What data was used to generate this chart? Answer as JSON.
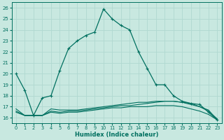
{
  "xlabel": "Humidex (Indice chaleur)",
  "ylabel": "",
  "xlim": [
    -0.5,
    23.5
  ],
  "ylim": [
    15.5,
    26.5
  ],
  "xticks": [
    0,
    1,
    2,
    3,
    4,
    5,
    6,
    7,
    8,
    9,
    10,
    11,
    12,
    13,
    14,
    15,
    16,
    17,
    18,
    19,
    20,
    21,
    22,
    23
  ],
  "yticks": [
    16,
    17,
    18,
    19,
    20,
    21,
    22,
    23,
    24,
    25,
    26
  ],
  "background_color": "#c8e8e0",
  "grid_color": "#b0d8d0",
  "line_color": "#007060",
  "line1_x": [
    0,
    1,
    2,
    3,
    4,
    5,
    6,
    7,
    8,
    9,
    10,
    11,
    12,
    13,
    14,
    15,
    16,
    17,
    18,
    19,
    20,
    21,
    22,
    23
  ],
  "line1_y": [
    20.0,
    18.5,
    16.2,
    17.8,
    18.0,
    20.3,
    22.3,
    23.0,
    23.5,
    23.8,
    25.9,
    25.0,
    24.4,
    24.0,
    22.0,
    20.5,
    19.0,
    19.0,
    18.0,
    17.5,
    17.3,
    17.2,
    16.5,
    15.8
  ],
  "line2_x": [
    0,
    1,
    2,
    3,
    4,
    5,
    6,
    7,
    8,
    9,
    10,
    11,
    12,
    13,
    14,
    15,
    16,
    17,
    18,
    19,
    20,
    21,
    22,
    23
  ],
  "line2_y": [
    16.8,
    16.2,
    16.2,
    16.2,
    16.8,
    16.7,
    16.7,
    16.7,
    16.8,
    16.9,
    17.0,
    17.1,
    17.2,
    17.3,
    17.4,
    17.4,
    17.5,
    17.5,
    17.5,
    17.4,
    17.3,
    17.0,
    16.7,
    15.8
  ],
  "line3_x": [
    0,
    1,
    2,
    3,
    4,
    5,
    6,
    7,
    8,
    9,
    10,
    11,
    12,
    13,
    14,
    15,
    16,
    17,
    18,
    19,
    20,
    21,
    22,
    23
  ],
  "line3_y": [
    16.6,
    16.2,
    16.2,
    16.2,
    16.6,
    16.5,
    16.6,
    16.6,
    16.7,
    16.8,
    16.9,
    17.0,
    17.1,
    17.1,
    17.2,
    17.3,
    17.4,
    17.5,
    17.5,
    17.4,
    17.2,
    17.0,
    16.6,
    15.9
  ],
  "line4_x": [
    0,
    1,
    2,
    3,
    4,
    5,
    6,
    7,
    8,
    9,
    10,
    11,
    12,
    13,
    14,
    15,
    16,
    17,
    18,
    19,
    20,
    21,
    22,
    23
  ],
  "line4_y": [
    16.5,
    16.2,
    16.2,
    16.2,
    16.5,
    16.4,
    16.5,
    16.5,
    16.6,
    16.7,
    16.8,
    16.9,
    16.9,
    17.0,
    17.0,
    17.0,
    17.1,
    17.1,
    17.1,
    17.0,
    16.8,
    16.6,
    16.3,
    15.8
  ]
}
